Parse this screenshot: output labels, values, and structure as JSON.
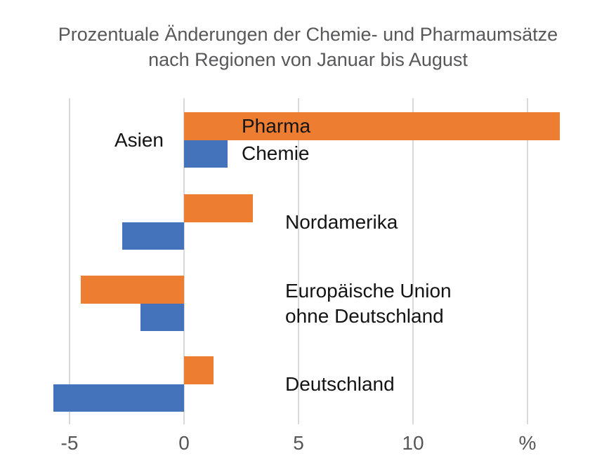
{
  "title": {
    "line1": "Prozentuale Änderungen der Chemie- und Pharmaumsätze",
    "line2": "nach Regionen von Januar bis August"
  },
  "colors": {
    "pharma": "#ed7d31",
    "chemie": "#4573bb",
    "gridline": "#d9d9d9",
    "title_text": "#58585a",
    "tick_text": "#565658",
    "label_text": "#141414",
    "background": "#ffffff"
  },
  "chart_data": {
    "type": "bar",
    "orientation": "horizontal",
    "title": "Prozentuale Änderungen der Chemie- und Pharmaumsätze nach Regionen von Januar bis August",
    "unit": "%",
    "grid": "vertical",
    "xlim": [
      -6.1,
      16.9
    ],
    "x_ticks": [
      {
        "value": -5,
        "label": "-5"
      },
      {
        "value": 0,
        "label": "0"
      },
      {
        "value": 5,
        "label": "5"
      },
      {
        "value": 10,
        "label": "10"
      },
      {
        "value": 15,
        "label": "%"
      }
    ],
    "categories": [
      {
        "name": "Asien",
        "lines": [
          "Asien"
        ],
        "label_side": "left"
      },
      {
        "name": "Nordamerika",
        "lines": [
          "Nordamerika"
        ],
        "label_side": "right"
      },
      {
        "name": "Europäische Union ohne Deutschland",
        "lines": [
          "Europäische Union",
          "ohne Deutschland"
        ],
        "label_side": "right"
      },
      {
        "name": "Deutschland",
        "lines": [
          "Deutschland"
        ],
        "label_side": "right"
      }
    ],
    "series": [
      {
        "name": "Pharma",
        "color": "#ed7d31",
        "values": [
          16.4,
          3.0,
          -4.5,
          1.3
        ]
      },
      {
        "name": "Chemie",
        "color": "#4573bb",
        "values": [
          1.9,
          -2.7,
          -1.9,
          -5.7
        ]
      }
    ],
    "series_labels_shown_on_first_group": true
  }
}
